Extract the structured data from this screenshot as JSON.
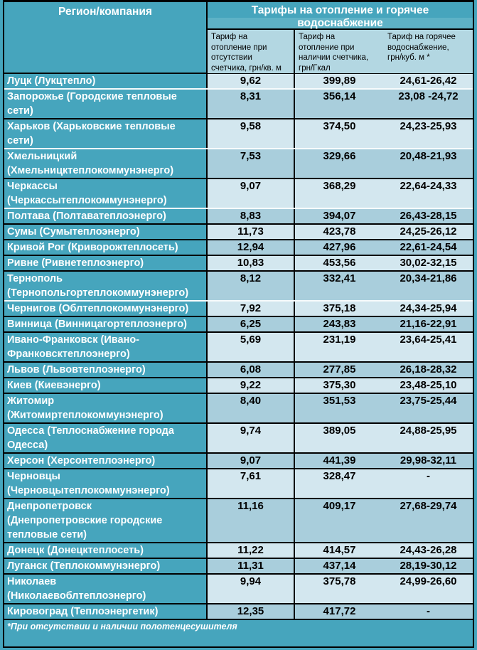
{
  "chart_data": {
    "type": "table",
    "title": "Тарифы на отопление и горячее водоснабжение",
    "title_lines": [
      "Тарифы на отопление и горячее",
      "водоснабжение"
    ],
    "region_header": "Регион/компания",
    "columns": [
      "Регион/компания",
      "Тариф на отопление при отсутствии счетчика, грн/кв. м",
      "Тариф на отопление при наличии счетчика, грн/Гкал",
      "Тариф на горячее водоснабжение, грн/куб. м *"
    ],
    "subheaders_display": [
      "Тариф на\nотопление при\nотсутствии\nсчетчика, грн/кв. м",
      "Тариф на\nотопление при\nналичии счетчика,\nгрн/Гкал",
      "Тариф на горячее\nводоснабжение,\nгрн/куб. м *"
    ],
    "rows": [
      [
        "Луцк (Лукцтепло)",
        "9,62",
        "399,89",
        "24,61-26,42"
      ],
      [
        "Запорожье (Городские тепловые сети)",
        "8,31",
        "356,14",
        "23,08 -24,72"
      ],
      [
        "Харьков (Харьковские тепловые сети)",
        "9,58",
        "374,50",
        "24,23-25,93"
      ],
      [
        "Хмельницкий (Хмельницктеплокоммунэнерго)",
        "7,53",
        "329,66",
        "20,48-21,93"
      ],
      [
        "Черкассы (Черкассытеплокоммунэнерго)",
        "9,07",
        "368,29",
        "22,64-24,33"
      ],
      [
        "Полтава (Полтаватеплоэнерго)",
        "8,83",
        "394,07",
        "26,43-28,15"
      ],
      [
        "Сумы (Сумытеплоэнерго)",
        "11,73",
        "423,78",
        "24,25-26,12"
      ],
      [
        "Кривой Рог (Криворожтеплосеть)",
        "12,94",
        "427,96",
        "22,61-24,54"
      ],
      [
        "Ривне (Ривнетеплоэнерго)",
        "10,83",
        "453,56",
        "30,02-32,15"
      ],
      [
        "Тернополь (Тернопольгортеплокоммунэнерго)",
        "8,12",
        "332,41",
        "20,34-21,86"
      ],
      [
        "Чернигов (Облтеплокоммунэнерго)",
        "7,92",
        "375,18",
        "24,34-25,94"
      ],
      [
        "Винница (Винницагортеплоэнерго)",
        "6,25",
        "243,83",
        "21,16-22,91"
      ],
      [
        "Ивано-Франковск (Ивано-Франковсктеплоэнерго)",
        "5,69",
        "231,19",
        "23,64-25,41"
      ],
      [
        "Львов (Львовтеплоэнерго)",
        "6,08",
        "277,85",
        "26,18-28,32"
      ],
      [
        "Киев (Киевэнерго)",
        "9,22",
        "375,30",
        "23,48-25,10"
      ],
      [
        "Житомир (Житомиртеплокоммунэнерго)",
        "8,40",
        "351,53",
        "23,75-25,44"
      ],
      [
        "Одесса (Теплоснабжение города Одесса)",
        "9,74",
        "389,05",
        "24,88-25,95"
      ],
      [
        "Херсон (Херсонтеплоэнерго)",
        "9,07",
        "441,39",
        "29,98-32,11"
      ],
      [
        "Черновцы (Черновцытеплокоммунэнерго)",
        "7,61",
        "328,47",
        "-"
      ],
      [
        "Днепропетровск (Днепропетровские городские тепловые сети)",
        "11,16",
        "409,17",
        "27,68-29,74"
      ],
      [
        "Донецк (Донецктеплосеть)",
        "11,22",
        "414,57",
        "24,43-26,28"
      ],
      [
        "Луганск (Теплокоммунэнерго)",
        "11,31",
        "437,14",
        "28,19-30,12"
      ],
      [
        "Николаев (Николаевоблтеплоэнерго)",
        "9,94",
        "375,78",
        "24,99-26,60"
      ],
      [
        "Кировоград (Теплоэнергетик)",
        "12,35",
        "417,72",
        "-"
      ]
    ],
    "footnote": "*При отсутствии и наличии полотенцесушителя",
    "layout_hints": {
      "grid": "on",
      "legend": "none"
    }
  },
  "colors": {
    "table_teal": "#46A5BD",
    "title_band_light": "#5EB2C6",
    "row_light": "#D3E7EF",
    "row_dark": "#A9CEDC",
    "subheader_bg": "#B3D7E2",
    "border": "#000000",
    "text_white": "#FFFFFF",
    "text_black": "#000000"
  }
}
